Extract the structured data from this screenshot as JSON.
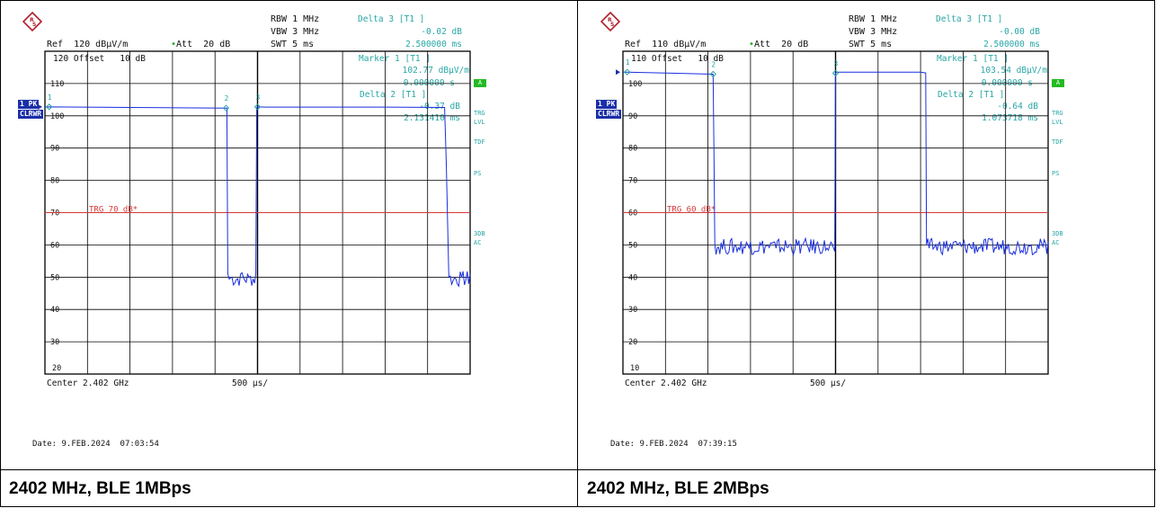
{
  "panels": [
    {
      "caption": "2402 MHz, BLE 1MBps",
      "rbw": "RBW 1 MHz",
      "vbw": "VBW 3 MHz",
      "swt": "SWT 5 ms",
      "ref": "Ref  120 dBµV/m",
      "att": "Att  20 dB",
      "offset": "120 Offset   10 dB",
      "delta3_title": "Delta 3 [T1 ]",
      "delta3_val": "-0.02 dB",
      "delta3_time": "2.500000 ms",
      "marker1_title": "Marker 1 [T1 ]",
      "marker1_val": "102.77 dBµV/m",
      "marker1_time": "0.000000 s",
      "delta2_title": "Delta 2 [T1 ]",
      "delta2_val": "-0.37 dB",
      "delta2_time": "2.131410 ms",
      "trg_label": "TRG 70 dB*",
      "center": "Center 2.402 GHz",
      "span": "500 µs/",
      "date": "Date: 9.FEB.2024  07:03:54",
      "badges": [
        "1 PK",
        "CLRWR"
      ],
      "side_labels": [
        "TRG",
        "LVL",
        "TDF",
        "PS",
        "3DB",
        "AC"
      ],
      "a_box": "A",
      "marker_labels": [
        "1",
        "2",
        "3"
      ],
      "chart_data": {
        "type": "line",
        "title": "",
        "xlabel": "Center 2.402 GHz",
        "ylabel": "dBµV/m",
        "ylim": [
          20,
          120
        ],
        "xlim_ms": [
          0,
          5
        ],
        "yticks": [
          120,
          110,
          100,
          90,
          80,
          70,
          60,
          50,
          40,
          30,
          20
        ],
        "trigger_level": 70,
        "series": [
          {
            "x": [
              0,
              0.05,
              2.13,
              2.14,
              2.15,
              2.2,
              2.3,
              2.4,
              2.48,
              2.49,
              2.5,
              2.6,
              3,
              4,
              4.7,
              4.72,
              4.75,
              4.8,
              4.9,
              5
            ],
            "values": [
              102.7,
              102.77,
              102.4,
              102.4,
              51,
              50,
              51,
              50,
              51,
              102.5,
              102.75,
              102.7,
              102.7,
              102.7,
              102.6,
              85,
              50,
              49,
              50,
              51
            ]
          }
        ]
      }
    },
    {
      "caption": "2402 MHz, BLE 2MBps",
      "rbw": "RBW 1 MHz",
      "vbw": "VBW 3 MHz",
      "swt": "SWT 5 ms",
      "ref": "Ref  110 dBµV/m",
      "att": "Att  20 dB",
      "offset": "110 Offset   10 dB",
      "delta3_title": "Delta 3 [T1 ]",
      "delta3_val": "-0.00 dB",
      "delta3_time": "2.500000 ms",
      "marker1_title": "Marker 1 [T1 ]",
      "marker1_val": "103.54 dBµV/m",
      "marker1_time": "0.000000 s",
      "delta2_title": "Delta 2 [T1 ]",
      "delta2_val": "-0.64 dB",
      "delta2_time": "1.073718 ms",
      "trg_label": "TRG 60 dB*",
      "center": "Center 2.402 GHz",
      "span": "500 µs/",
      "date": "Date: 9.FEB.2024  07:39:15",
      "badges": [
        "1 PK",
        "CLRWR"
      ],
      "side_labels": [
        "TRG",
        "LVL",
        "TDF",
        "PS",
        "3DB",
        "AC"
      ],
      "a_box": "A",
      "marker_labels": [
        "1",
        "2",
        "3"
      ],
      "chart_data": {
        "type": "line",
        "title": "",
        "xlabel": "Center 2.402 GHz",
        "ylabel": "dBµV/m",
        "ylim": [
          10,
          110
        ],
        "xlim_ms": [
          0,
          5
        ],
        "yticks": [
          110,
          100,
          90,
          80,
          70,
          60,
          50,
          40,
          30,
          20,
          10
        ],
        "trigger_level": 60,
        "series": [
          {
            "x": [
              0,
              0.05,
              1.06,
              1.07,
              1.08,
              1.2,
              1.5,
              1.8,
              2.1,
              2.4,
              2.49,
              2.5,
              2.51,
              3,
              3.5,
              3.56,
              3.57,
              3.6,
              3.9,
              4.2,
              4.5,
              4.8,
              5
            ],
            "values": [
              103.5,
              103.54,
              102.9,
              80,
              50,
              49,
              51,
              49,
              50,
              49,
              48,
              103.2,
              103.5,
              103.5,
              103.5,
              103.3,
              50,
              49,
              51,
              49,
              50,
              50,
              51
            ]
          }
        ]
      }
    }
  ]
}
